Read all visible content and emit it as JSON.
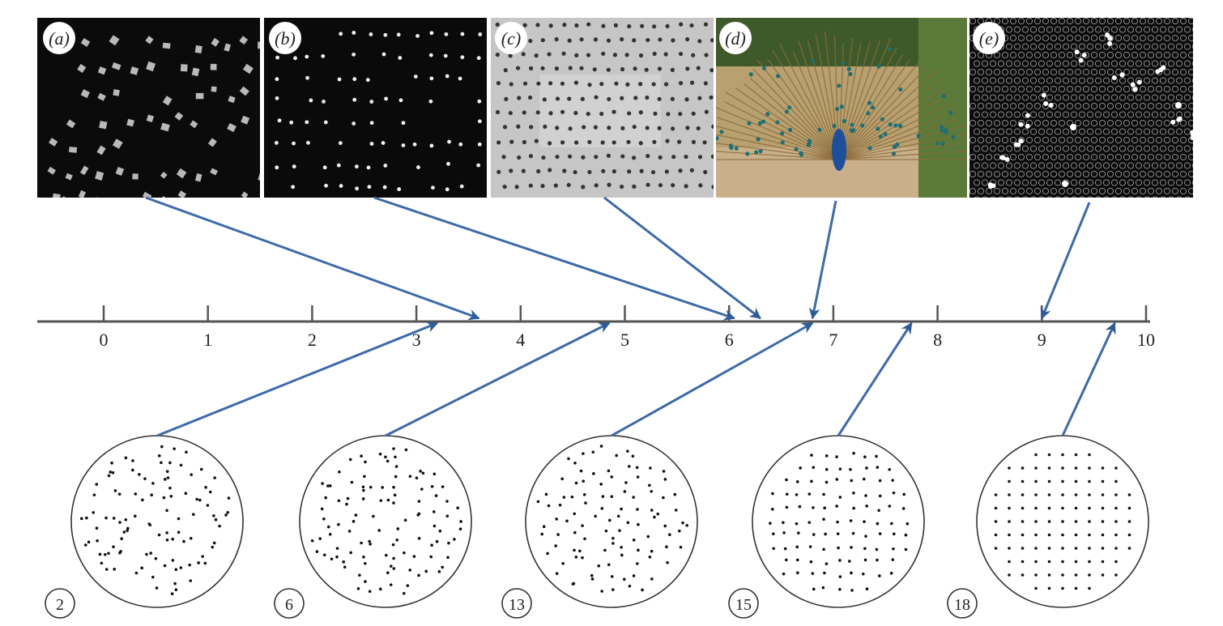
{
  "panels": [
    {
      "label": "(a)",
      "style": "dark_blobs",
      "scale_value": 3.6
    },
    {
      "label": "(b)",
      "style": "dark_dots",
      "scale_value": 6.05
    },
    {
      "label": "(c)",
      "style": "gray_holes",
      "scale_value": 6.3
    },
    {
      "label": "(d)",
      "style": "peacock",
      "scale_value": 6.8
    },
    {
      "label": "(e)",
      "style": "hex_lattice",
      "scale_value": 9.0
    }
  ],
  "axis": {
    "min": 0,
    "max": 10,
    "ticks": [
      "0",
      "1",
      "2",
      "3",
      "4",
      "5",
      "6",
      "7",
      "8",
      "9",
      "10"
    ]
  },
  "patterns": [
    {
      "number": "2",
      "scale_value": 3.2,
      "order": 0.0
    },
    {
      "number": "6",
      "scale_value": 4.85,
      "order": 0.25
    },
    {
      "number": "13",
      "scale_value": 6.8,
      "order": 0.55
    },
    {
      "number": "15",
      "scale_value": 7.75,
      "order": 0.8
    },
    {
      "number": "18",
      "scale_value": 9.7,
      "order": 1.0
    }
  ],
  "colors": {
    "arrow": "#3d6aa6",
    "axis": "#555555",
    "dots": "#111111"
  }
}
